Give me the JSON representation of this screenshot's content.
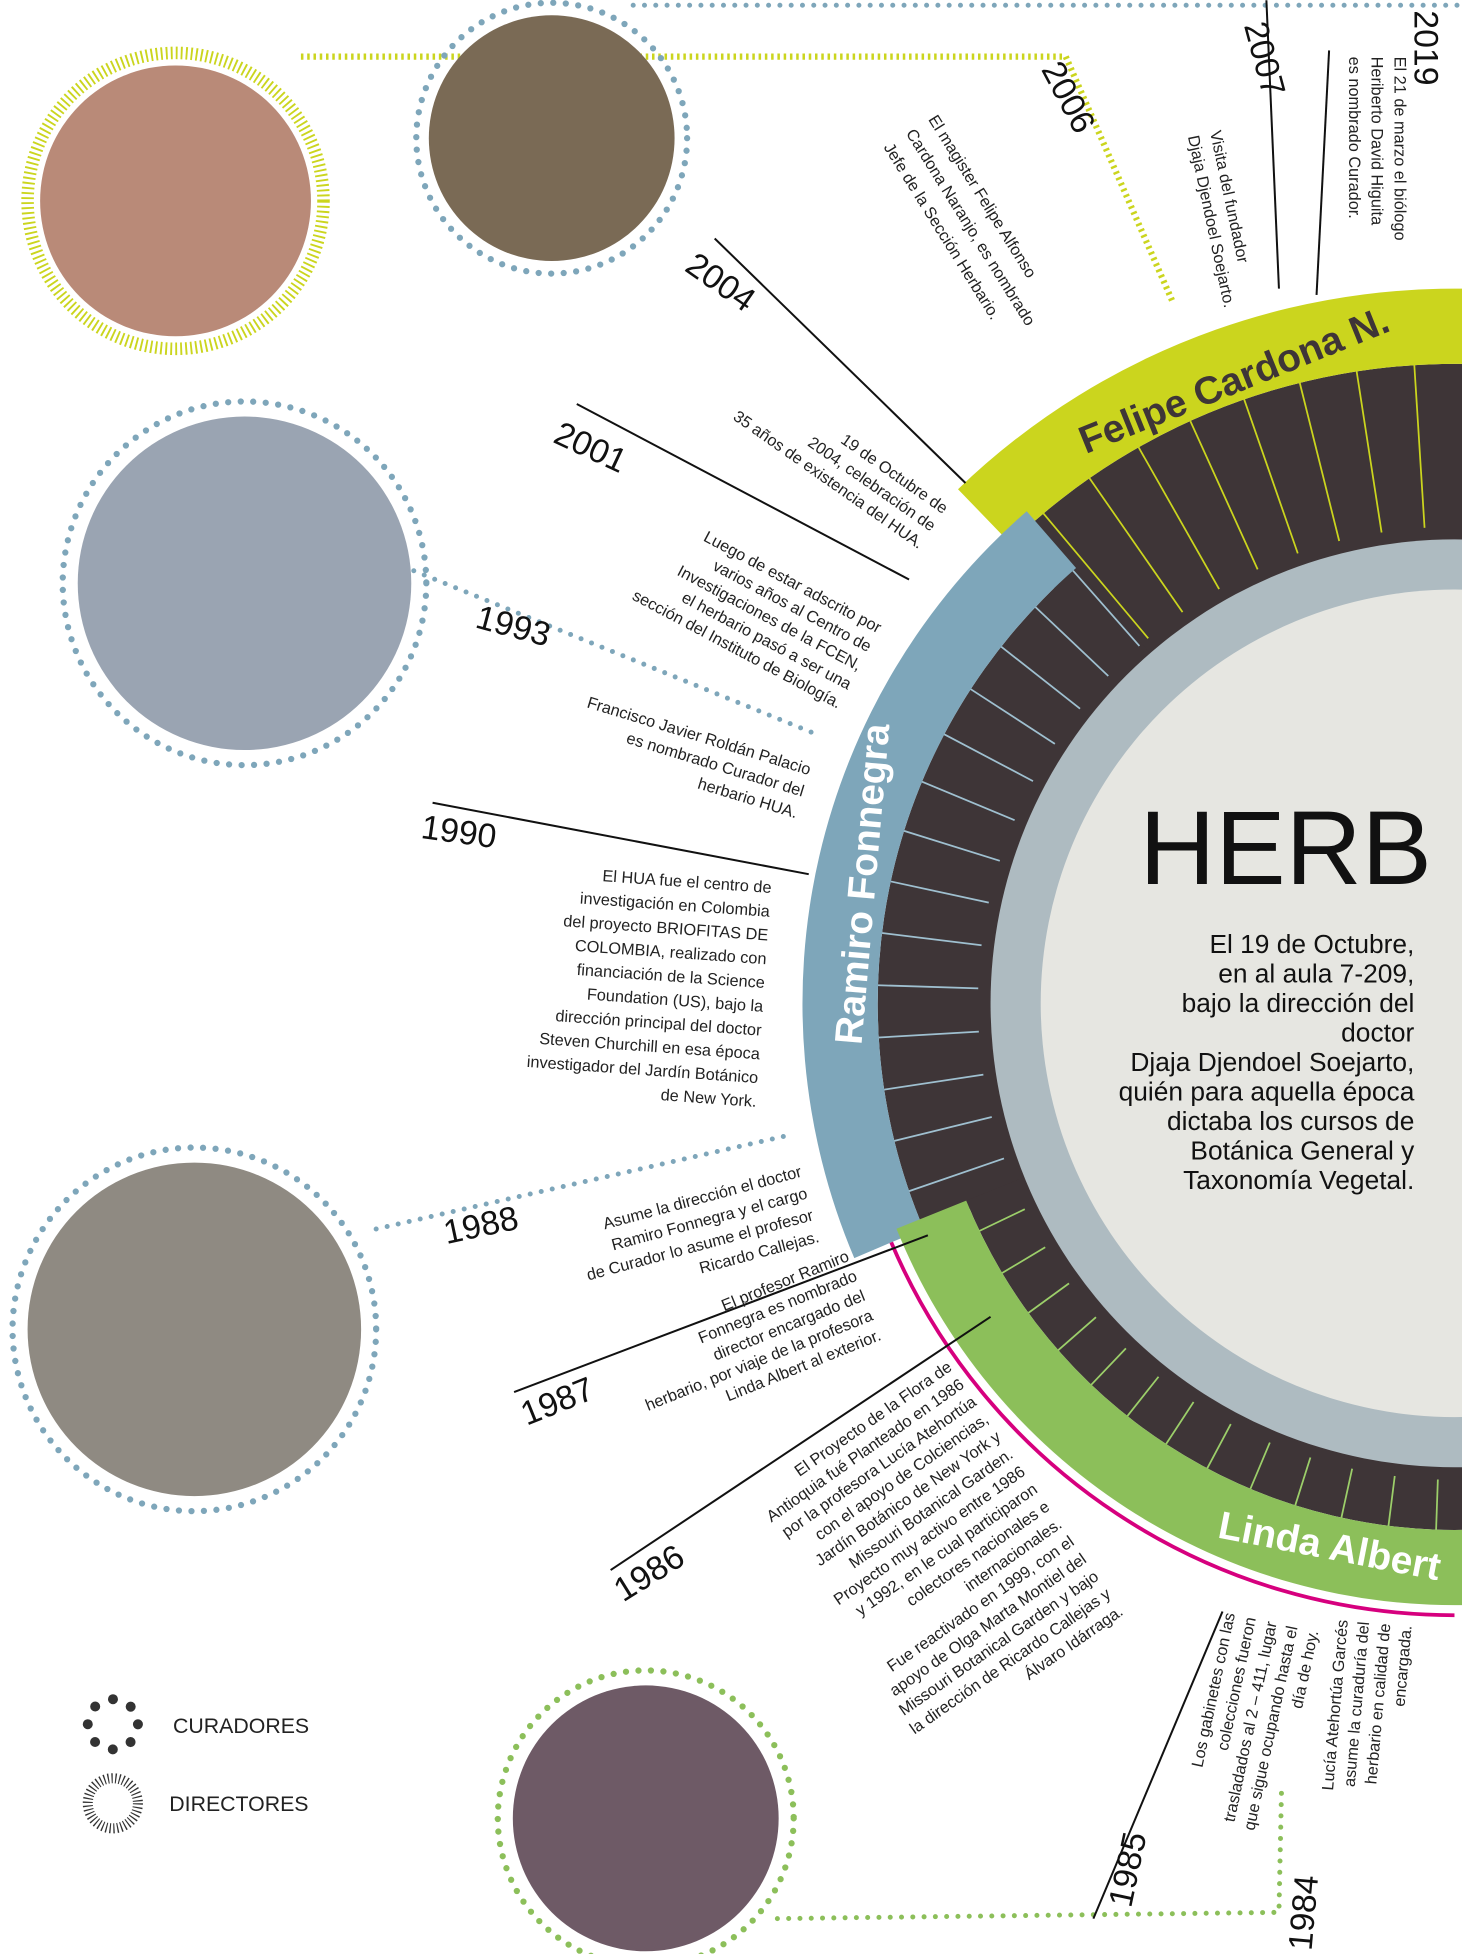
{
  "center": {
    "title": "HERB",
    "text": [
      "El 19 de Octubre,",
      "en al aula 7-209,",
      "bajo la dirección del",
      "doctor",
      "Djaja Djendoel Soejarto,",
      "quién para aquella época",
      "dictaba los cursos de",
      "Botánica General  y",
      "Taxonomía Vegetal."
    ]
  },
  "arcs": [
    {
      "name": "Felipe Cardona N."
    },
    {
      "name": "Ramiro Fonnegra"
    },
    {
      "name": "Linda Albert"
    }
  ],
  "events": [
    {
      "year": "2019",
      "text": [
        "El 21 de marzo el biólogo",
        "Heriberto David Higuita",
        "es nombrado Curador."
      ]
    },
    {
      "year": "2007",
      "text": [
        "Visita del fundador",
        "Djaja Djendoel Soejarto."
      ]
    },
    {
      "year": "2006",
      "text": [
        "El magister Felipe Alfonso",
        "Cardona Naranjo, es nombrado",
        "Jefe de la Sección Herbario."
      ]
    },
    {
      "year": "2004",
      "text": [
        "19 de Octubre de",
        "2004, celebración de",
        "35 años de existencia del HUA."
      ]
    },
    {
      "year": "2001",
      "text": [
        "Luego de estar adscrito por",
        "varios años al Centro de",
        "Investigaciones de la FCEN,",
        "el herbario pasó a ser una",
        "sección del Instituto de Biología."
      ]
    },
    {
      "year": "1993",
      "text": [
        "Francisco Javier Roldán Palacio",
        "es nombrado Curador del",
        "herbario HUA."
      ]
    },
    {
      "year": "1990",
      "text": [
        "El HUA fue el centro de",
        "investigación en Colombia",
        "del proyecto BRIOFITAS DE",
        "COLOMBIA, realizado con",
        "financiación de la Science",
        "Foundation (US), bajo la",
        "dirección principal del doctor",
        "Steven Churchill en esa época",
        "investigador del Jardín Botánico",
        "de New York."
      ]
    },
    {
      "year": "1988",
      "text": [
        "Asume la dirección el doctor",
        "Ramiro Fonnegra y el cargo",
        "de Curador lo asume el profesor",
        "Ricardo Callejas."
      ]
    },
    {
      "year": "1987",
      "text": [
        "El profesor Ramiro",
        "Fonnegra es nombrado",
        "director encargado del",
        "herbario, por viaje de la profesora",
        "Linda Albert al exterior."
      ]
    },
    {
      "year": "1986",
      "text": [
        "El Proyecto de la Flora de",
        "Antioquia fué Planteado en 1986",
        "por la profesora Lucía Atehortúa",
        "con el apoyo de Colciencias,",
        "Jardín Botánico de New York y",
        "Missouri Botanical Garden.",
        "Proyecto muy activo entre 1986",
        "y 1992, en le cual participaron",
        "colectores nacionales e",
        "internacionales.",
        "Fue reactivado en 1999, con el",
        "apoyo de Olga Marta Montiel del",
        "Missouri Botanical Garden y bajo",
        "la dirección de Ricardo Callejas y",
        "Álvaro Idárraga."
      ]
    },
    {
      "year": "1985",
      "text": [
        "Los gabinetes con las",
        "colecciones fueron",
        "trasladados al 2 – 411, lugar",
        "que sigue ocupando hasta el",
        "día de hoy."
      ]
    },
    {
      "year": "1984",
      "text": [
        "Lucía Atehortúa Garcés",
        "asume la curaduría del",
        "herbario en calidad de",
        "encargada."
      ]
    }
  ],
  "legend": [
    {
      "label": "CURADORES"
    },
    {
      "label": "DIRECTORES"
    }
  ]
}
